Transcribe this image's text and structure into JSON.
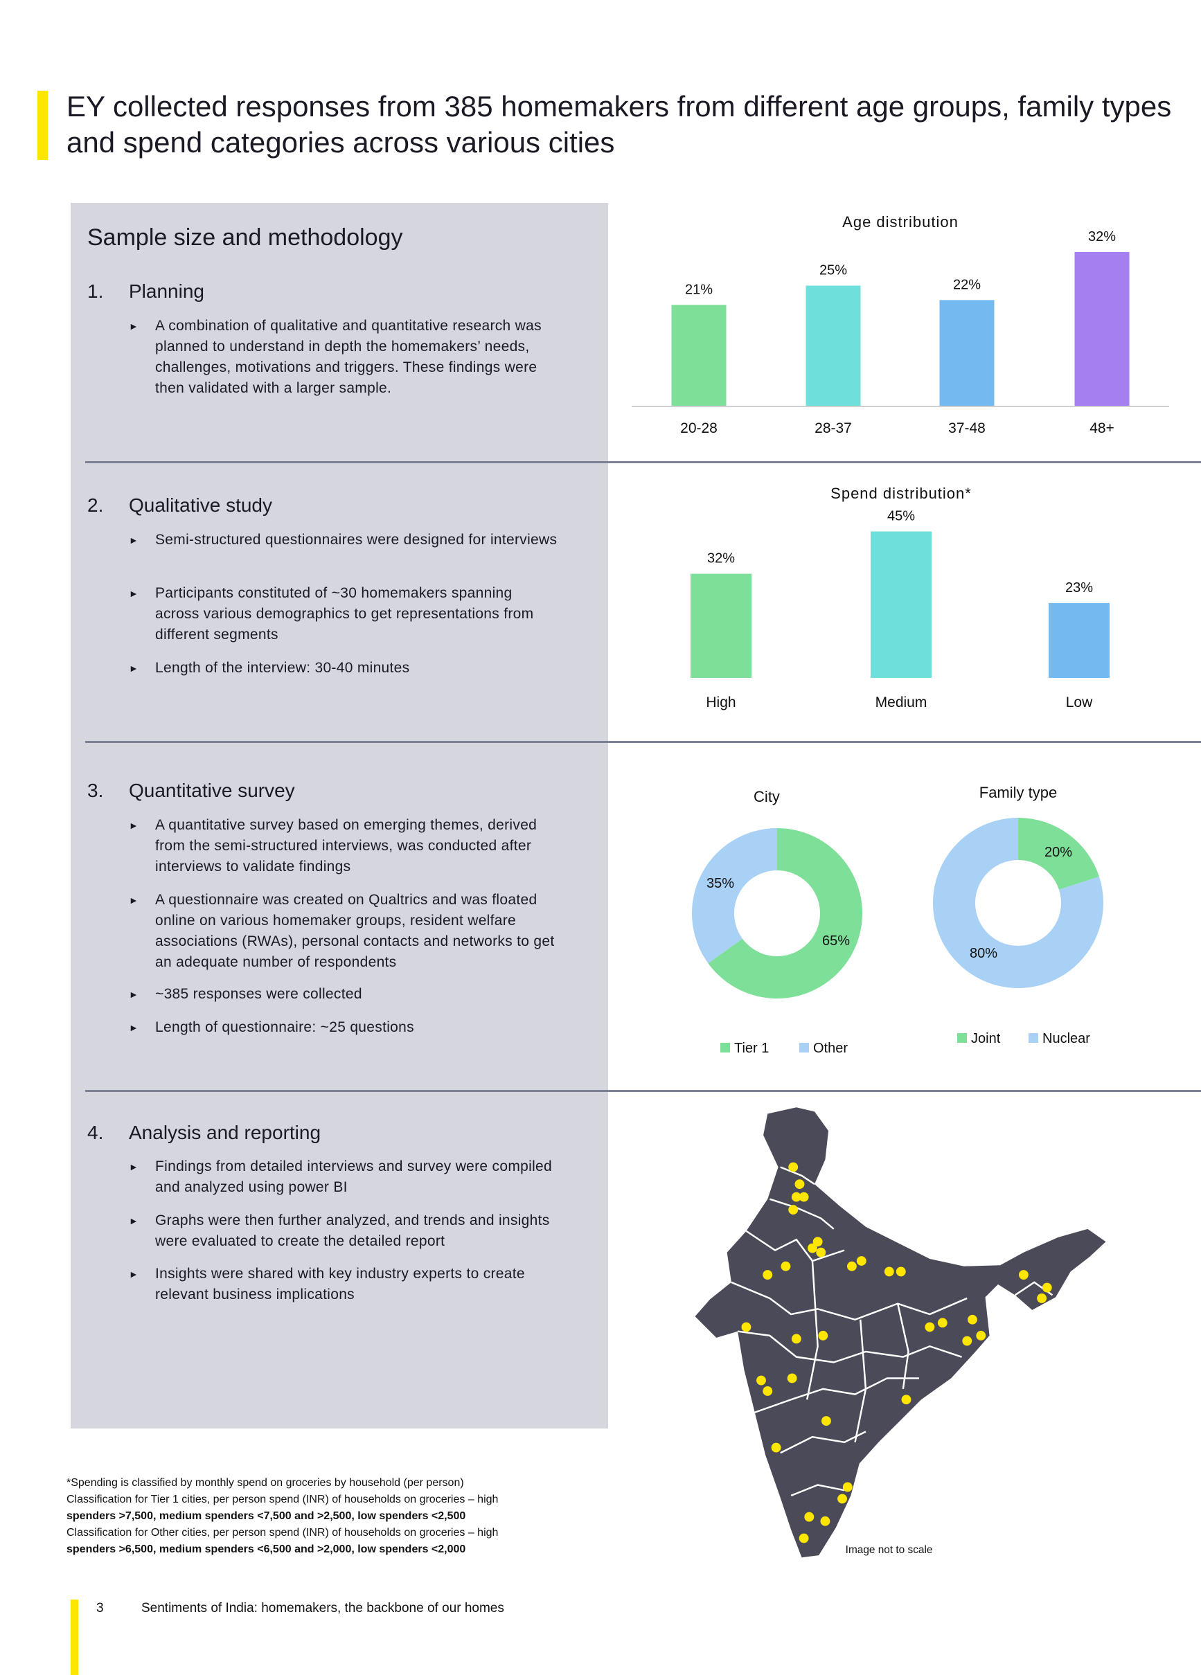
{
  "title": "EY collected responses from 385 homemakers from different age groups, family types and spend categories across various cities",
  "panel": {
    "heading": "Sample size and methodology",
    "sections": [
      {
        "num": "1.",
        "title": "Planning",
        "bullets": [
          "A combination of qualitative and quantitative research was planned to understand in depth the homemakers’ needs, challenges, motivations and triggers. These findings were then validated with a larger sample."
        ]
      },
      {
        "num": "2.",
        "title": "Qualitative study",
        "bullets": [
          "Semi-structured questionnaires were designed for interviews",
          "Participants constituted of ~30 homemakers spanning across various demographics to get representations from different segments",
          "Length of the interview: 30-40 minutes"
        ]
      },
      {
        "num": "3.",
        "title": "Quantitative survey",
        "bullets": [
          "A quantitative survey based on emerging themes, derived from the semi-structured interviews, was conducted after interviews to validate findings",
          "A questionnaire was created on Qualtrics and was floated online on various homemaker groups, resident welfare associations (RWAs), personal contacts and networks to get an adequate number of respondents",
          "~385 responses were collected",
          "Length of questionnaire: ~25 questions"
        ]
      },
      {
        "num": "4.",
        "title": "Analysis and reporting",
        "bullets": [
          "Findings from detailed interviews and survey were compiled and analyzed using power BI",
          "Graphs were then further analyzed, and trends and insights were evaluated to create the detailed report",
          "Insights were shared with key industry experts to create relevant business implications"
        ]
      }
    ]
  },
  "chart_data": [
    {
      "type": "bar",
      "title": "Age distribution",
      "categories": [
        "20-28",
        "28-37",
        "37-48",
        "48+"
      ],
      "values": [
        21,
        25,
        22,
        32
      ],
      "labels": [
        "21%",
        "25%",
        "22%",
        "32%"
      ],
      "unit": "%",
      "colors": [
        "#7ddf98",
        "#6edfdb",
        "#74b9f0",
        "#a57ff0"
      ]
    },
    {
      "type": "bar",
      "title": "Spend distribution*",
      "categories": [
        "High",
        "Medium",
        "Low"
      ],
      "values": [
        32,
        45,
        23
      ],
      "labels": [
        "32%",
        "45%",
        "23%"
      ],
      "unit": "%",
      "colors": [
        "#7ddf98",
        "#6edfdb",
        "#74b9f0"
      ]
    },
    {
      "type": "pie",
      "title": "City",
      "donut": true,
      "categories": [
        "Tier 1",
        "Other"
      ],
      "values": [
        65,
        35
      ],
      "labels": [
        "65%",
        "35%"
      ],
      "colors": [
        "#7ddf98",
        "#a8d1f5"
      ],
      "legend": "bottom"
    },
    {
      "type": "pie",
      "title": "Family type",
      "donut": true,
      "categories": [
        "Joint",
        "Nuclear"
      ],
      "values": [
        20,
        80
      ],
      "labels": [
        "20%",
        "80%"
      ],
      "colors": [
        "#7ddf98",
        "#a8d1f5"
      ],
      "legend": "bottom"
    }
  ],
  "map": {
    "caption": "Image not to scale",
    "land_color": "#4a4a58",
    "dot_color": "#ffe600"
  },
  "footnote": {
    "line1": "*Spending is classified by monthly spend on groceries  by household (per person)",
    "line2": "Classification for Tier 1 cities, per person spend (INR) of households on groceries  – high",
    "line3": "spenders >7,500, medium spenders <7,500 and >2,500, low spenders <2,500",
    "line4": "Classification for Other  cities, per person spend (INR) of households on groceries  – high",
    "line5": "spenders >6,500, medium spenders <6,500 and >2,000, low spenders <2,000"
  },
  "footer": {
    "page": "3",
    "text": "Sentiments of India: homemakers, the backbone of our homes"
  },
  "accent": "#ffe600"
}
